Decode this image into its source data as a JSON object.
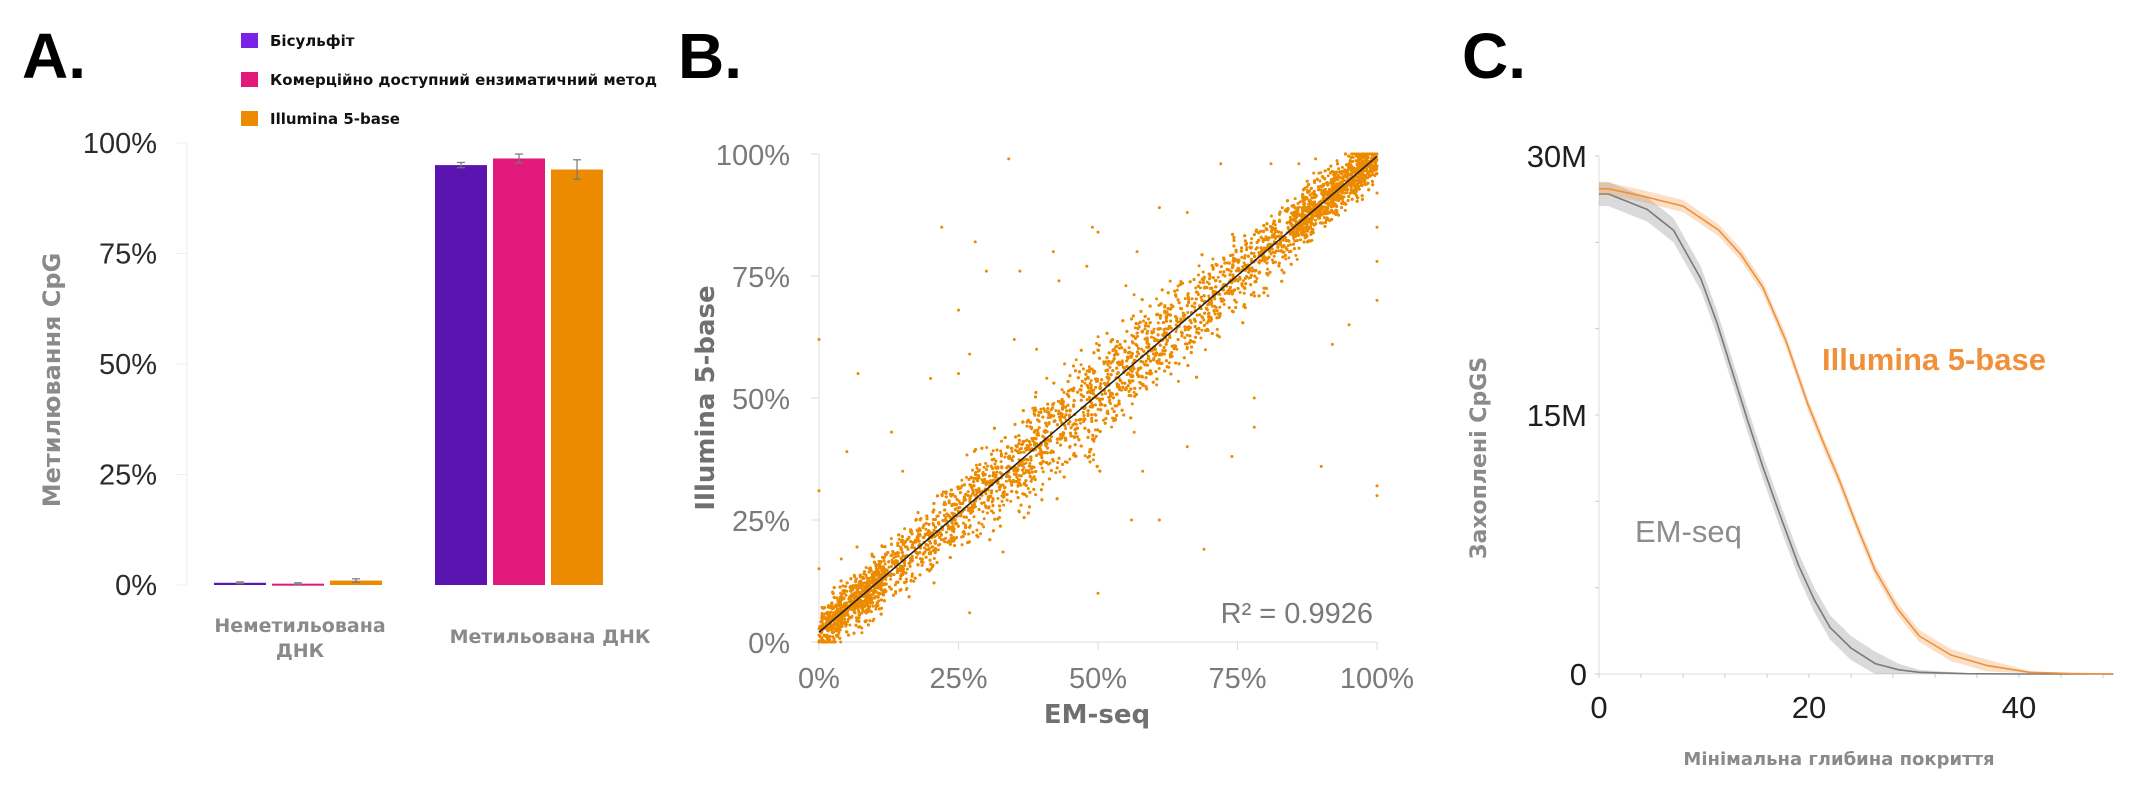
{
  "panels": {
    "a": "A.",
    "b": "B.",
    "c": "C."
  },
  "chart_data": [
    {
      "type": "bar",
      "panel": "A.",
      "ylabel": "Метилювання CpG",
      "xlabel": "",
      "ylim": [
        0,
        100
      ],
      "yticks": [
        "0%",
        "25%",
        "50%",
        "75%",
        "100%"
      ],
      "categories": [
        "Неметильована ДНК",
        "Метильована ДНК"
      ],
      "category_lines": [
        [
          "Неметильована",
          "ДНК"
        ],
        [
          "Метильована ДНК"
        ]
      ],
      "legend_position": "top",
      "series": [
        {
          "name": "Бісульфіт",
          "color": "#5a14b0",
          "legend_color": "#7a22e6",
          "values": [
            0.5,
            95.0
          ],
          "errors": [
            0.2,
            0.6
          ]
        },
        {
          "name": "Комерційно доступний ензиматичний метод",
          "color": "#e0197a",
          "legend_color": "#e0197a",
          "values": [
            0.3,
            96.5
          ],
          "errors": [
            0.2,
            1.0
          ]
        },
        {
          "name": "Illumina 5-base",
          "color": "#ec8a00",
          "legend_color": "#ec8a00",
          "values": [
            1.0,
            94.0
          ],
          "errors": [
            0.4,
            2.2
          ]
        }
      ]
    },
    {
      "type": "scatter",
      "panel": "B.",
      "xlabel": "EM-seq",
      "ylabel": "Illumina 5-base",
      "xlim": [
        0,
        100
      ],
      "ylim": [
        0,
        100
      ],
      "xticks": [
        "0%",
        "25%",
        "50%",
        "75%",
        "100%"
      ],
      "yticks": [
        "0%",
        "25%",
        "50%",
        "75%",
        "100%"
      ],
      "color": "#ec8a00",
      "annotation": "R² = 0.9926",
      "trendline": {
        "slope": 0.975,
        "intercept": 2.0
      },
      "cloud": {
        "n_points": 9000,
        "spread_sd": 3.5
      },
      "outliers": [
        [
          34,
          99
        ],
        [
          22,
          85
        ],
        [
          28,
          82
        ],
        [
          30,
          76
        ],
        [
          36,
          76
        ],
        [
          25,
          68
        ],
        [
          43,
          74
        ],
        [
          42,
          80
        ],
        [
          49,
          85
        ],
        [
          50,
          84
        ],
        [
          48,
          77
        ],
        [
          55,
          73
        ],
        [
          57,
          80
        ],
        [
          61,
          89
        ],
        [
          66,
          88
        ],
        [
          72,
          98
        ],
        [
          81,
          98
        ],
        [
          86,
          98
        ],
        [
          89,
          99
        ],
        [
          95,
          65
        ],
        [
          92,
          61
        ],
        [
          90,
          36
        ],
        [
          100,
          32
        ],
        [
          100,
          30
        ],
        [
          100,
          70
        ],
        [
          100,
          78
        ],
        [
          100,
          85
        ],
        [
          100,
          92
        ],
        [
          100,
          96
        ],
        [
          0,
          62
        ],
        [
          0,
          31
        ],
        [
          5,
          39
        ],
        [
          7,
          55
        ],
        [
          20,
          54
        ],
        [
          25,
          55
        ],
        [
          27,
          59
        ],
        [
          13,
          43
        ],
        [
          15,
          35
        ],
        [
          10,
          9
        ],
        [
          27,
          6
        ],
        [
          50,
          10
        ],
        [
          61,
          25
        ],
        [
          56,
          25
        ],
        [
          69,
          19
        ],
        [
          74,
          38
        ],
        [
          78,
          44
        ],
        [
          78,
          50
        ],
        [
          66,
          40
        ],
        [
          58,
          35
        ],
        [
          0,
          15
        ],
        [
          4,
          17
        ],
        [
          35,
          62
        ],
        [
          39,
          60
        ],
        [
          44,
          57
        ]
      ]
    },
    {
      "type": "line",
      "panel": "C.",
      "xlabel": "Мінімальна глибина покриття",
      "ylabel": "Захоплені CpGS",
      "xlim": [
        0,
        49
      ],
      "ylim": [
        0,
        30
      ],
      "xticks": [
        "0",
        "20",
        "40"
      ],
      "yticks": [
        "0",
        "15M",
        "30M"
      ],
      "series": [
        {
          "name": "Illumina 5-base",
          "color": "#f0903a",
          "band": 0.35,
          "x": [
            0,
            0.9,
            4,
            8,
            11.4,
            13.5,
            15.6,
            17.8,
            19.9,
            21.5,
            22.9,
            24.6,
            26.3,
            28.4,
            30.5,
            33.5,
            36.9,
            41,
            45,
            49
          ],
          "y": [
            28.1,
            28.1,
            27.7,
            27.1,
            25.7,
            24.3,
            22.4,
            19.3,
            15.6,
            13.2,
            11.2,
            8.5,
            6.0,
            3.8,
            2.2,
            1.1,
            0.5,
            0.1,
            0.03,
            0
          ]
        },
        {
          "name": "EM-seq",
          "color": "#7a7a7a",
          "band": 0.7,
          "x": [
            0,
            0.9,
            4.6,
            7.1,
            9.7,
            11.2,
            12.6,
            14.1,
            15.6,
            17.3,
            19,
            20.5,
            22,
            24,
            26.3,
            28.5,
            30.5,
            35,
            40,
            49
          ],
          "y": [
            27.8,
            27.8,
            26.9,
            25.7,
            22.9,
            20.4,
            17.7,
            14.8,
            12.0,
            9.1,
            6.3,
            4.3,
            2.7,
            1.5,
            0.6,
            0.25,
            0.1,
            0.02,
            0,
            0
          ]
        }
      ]
    }
  ]
}
